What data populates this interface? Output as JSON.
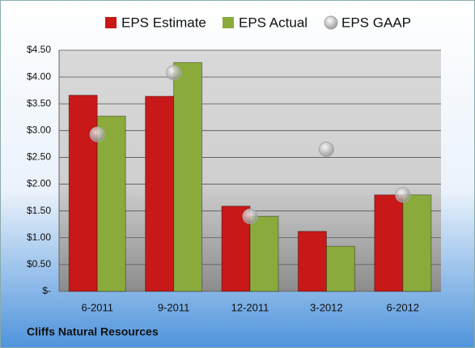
{
  "chart_data": {
    "type": "bar",
    "categories": [
      "6-2011",
      "9-2011",
      "12-2011",
      "3-2012",
      "6-2012"
    ],
    "series": [
      {
        "name": "EPS Estimate",
        "color": "#c81818",
        "values": [
          3.66,
          3.64,
          1.59,
          1.12,
          1.8
        ]
      },
      {
        "name": "EPS Actual",
        "color": "#8aab3c",
        "values": [
          3.27,
          4.27,
          1.4,
          0.84,
          1.8
        ]
      },
      {
        "name": "EPS GAAP",
        "color": "#a8a8a8",
        "type": "scatter",
        "values": [
          2.93,
          4.08,
          1.4,
          2.65,
          1.8
        ]
      }
    ],
    "ylim": [
      0,
      4.5
    ],
    "yticks": [
      {
        "value": 0,
        "label": "$-"
      },
      {
        "value": 0.5,
        "label": "$0.50"
      },
      {
        "value": 1,
        "label": "$1.00"
      },
      {
        "value": 1.5,
        "label": "$1.50"
      },
      {
        "value": 2,
        "label": "$2.00"
      },
      {
        "value": 2.5,
        "label": "$2.50"
      },
      {
        "value": 3,
        "label": "$3.00"
      },
      {
        "value": 3.5,
        "label": "$3.50"
      },
      {
        "value": 4,
        "label": "$4.00"
      },
      {
        "value": 4.5,
        "label": "$4.50"
      }
    ],
    "grid": true,
    "legend": "top",
    "footer": "Cliffs Natural Resources"
  }
}
